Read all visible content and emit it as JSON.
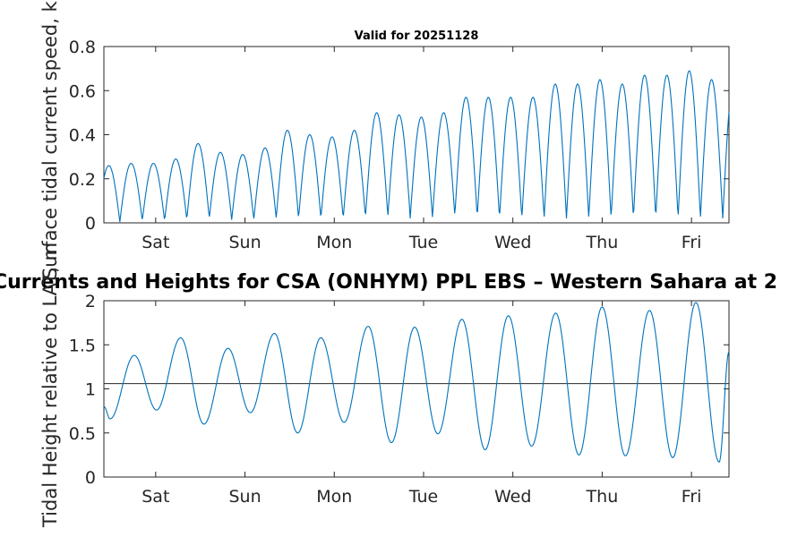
{
  "chart_data": [
    {
      "type": "line",
      "title": "Valid for 20251128",
      "xlabel": "",
      "ylabel": "Surface tidal current speed, kn",
      "ylim": [
        0,
        0.8
      ],
      "yticks": [
        0,
        0.2,
        0.4,
        0.6,
        0.8
      ],
      "ytick_labels": [
        "0",
        "0.2",
        "0.4",
        "0.6",
        "0.8"
      ],
      "xlim": [
        0,
        7
      ],
      "xticks": [
        0.58,
        1.58,
        2.58,
        3.58,
        4.58,
        5.58,
        6.58
      ],
      "xtick_labels": [
        "Sat",
        "Sun",
        "Mon",
        "Tue",
        "Wed",
        "Thu",
        "Fri"
      ],
      "series_color": "#0072bd",
      "series": [
        {
          "name": "current speed",
          "peaks": [
            0.26,
            0.27,
            0.27,
            0.29,
            0.36,
            0.32,
            0.31,
            0.34,
            0.42,
            0.4,
            0.39,
            0.42,
            0.5,
            0.49,
            0.48,
            0.5,
            0.57,
            0.57,
            0.57,
            0.57,
            0.63,
            0.63,
            0.65,
            0.63,
            0.67,
            0.67,
            0.69,
            0.65
          ],
          "troughs": [
            0.0,
            0.01,
            0.01,
            0.01,
            0.02,
            0.02,
            0.01,
            0.02,
            0.02,
            0.02,
            0.02,
            0.02,
            0.03,
            0.03,
            0.02,
            0.03,
            0.03,
            0.02,
            0.02,
            0.02,
            0.02,
            0.02,
            0.02,
            0.02,
            0.02,
            0.02,
            0.02,
            0.02,
            0.03
          ]
        }
      ]
    },
    {
      "type": "line",
      "title": "Currents and Heights for CSA (ONHYM) PPL EBS  – Western Sahara at 2",
      "xlabel": "",
      "ylabel": "Tidal Height relative to LAT, m",
      "ylim": [
        0,
        2
      ],
      "yticks": [
        0,
        0.5,
        1,
        1.5,
        2
      ],
      "ytick_labels": [
        "0",
        "0.5",
        "1",
        "1.5",
        "2"
      ],
      "xlim": [
        0,
        7
      ],
      "xticks": [
        0.58,
        1.58,
        2.58,
        3.58,
        4.58,
        5.58,
        6.58
      ],
      "xtick_labels": [
        "Sat",
        "Sun",
        "Mon",
        "Tue",
        "Wed",
        "Thu",
        "Fri"
      ],
      "mean_level": 1.06,
      "series_color": "#0072bd",
      "series": [
        {
          "name": "tidal height",
          "extrema": [
            [
              0.0,
              0.8
            ],
            [
              0.07,
              0.66
            ],
            [
              0.34,
              1.38
            ],
            [
              0.59,
              0.76
            ],
            [
              0.86,
              1.58
            ],
            [
              1.12,
              0.6
            ],
            [
              1.39,
              1.46
            ],
            [
              1.64,
              0.73
            ],
            [
              1.91,
              1.63
            ],
            [
              2.17,
              0.5
            ],
            [
              2.43,
              1.58
            ],
            [
              2.69,
              0.62
            ],
            [
              2.96,
              1.71
            ],
            [
              3.22,
              0.39
            ],
            [
              3.48,
              1.7
            ],
            [
              3.74,
              0.49
            ],
            [
              4.01,
              1.79
            ],
            [
              4.27,
              0.31
            ],
            [
              4.53,
              1.83
            ],
            [
              4.79,
              0.35
            ],
            [
              5.06,
              1.86
            ],
            [
              5.32,
              0.25
            ],
            [
              5.58,
              1.93
            ],
            [
              5.84,
              0.24
            ],
            [
              6.11,
              1.89
            ],
            [
              6.37,
              0.22
            ],
            [
              6.63,
              1.98
            ],
            [
              6.89,
              0.17
            ],
            [
              7.0,
              1.42
            ]
          ]
        }
      ]
    }
  ]
}
